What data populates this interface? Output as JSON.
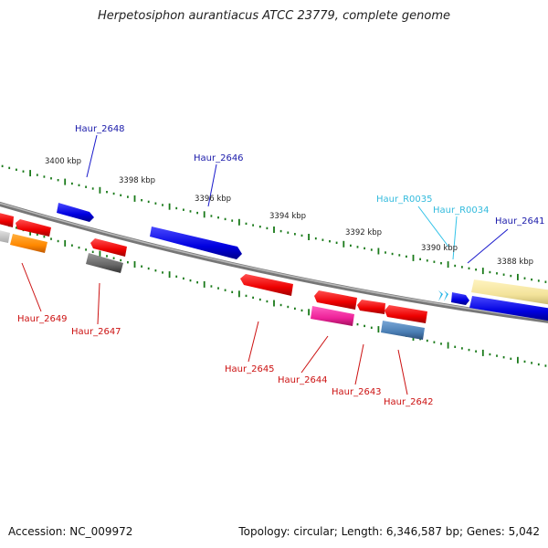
{
  "title": "Herpetosiphon aurantiacus ATCC 23779, complete genome",
  "footer": {
    "accession": "Accession: NC_009972",
    "summary": "Topology: circular; Length: 6,346,587 bp; Genes: 5,042"
  },
  "scale_labels": [
    "3400 kbp",
    "3398 kbp",
    "3396 kbp",
    "3394 kbp",
    "3392 kbp",
    "3390 kbp",
    "3388 kbp"
  ],
  "gene_labels": {
    "Haur_2648": "Haur_2648",
    "Haur_2646": "Haur_2646",
    "Haur_R0035": "Haur_R0035",
    "Haur_R0034": "Haur_R0034",
    "Haur_2641": "Haur_2641",
    "Haur_2649": "Haur_2649",
    "Haur_2647": "Haur_2647",
    "Haur_2645": "Haur_2645",
    "Haur_2644": "Haur_2644",
    "Haur_2643": "Haur_2643",
    "Haur_2642": "Haur_2642"
  },
  "colors": {
    "forward_gene": "#1010e0",
    "reverse_gene": "#e81010",
    "rna_gene": "#22bbee",
    "tick": "#1a7a1a",
    "backbone": "#777777"
  }
}
